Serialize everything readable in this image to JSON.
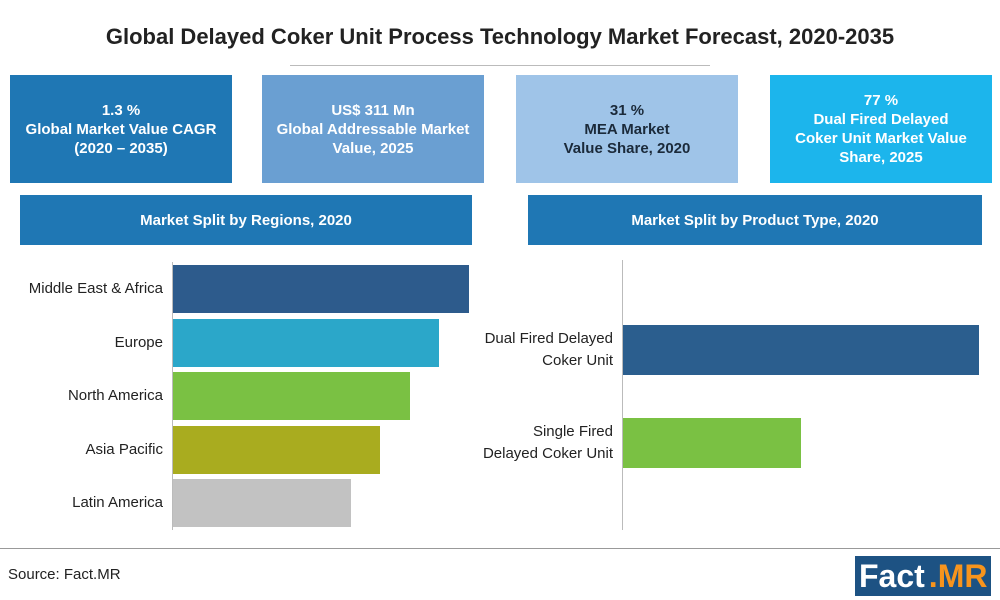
{
  "title": "Global Delayed Coker Unit Process Technology Market Forecast, 2020-2035",
  "kpis": [
    {
      "lines": [
        "1.3 %",
        "Global Market Value CAGR",
        "(2020 – 2035)"
      ],
      "color": "#1f77b4"
    },
    {
      "lines": [
        "US$ 311 Mn",
        "Global Addressable Market",
        "Value, 2025"
      ],
      "color": "#6a9fd2"
    },
    {
      "lines": [
        "31 %",
        "MEA Market",
        "Value Share, 2020"
      ],
      "color": "#9fc4e8"
    },
    {
      "lines": [
        "77 %",
        "Dual Fired Delayed",
        "Coker Unit Market Value",
        "Share, 2025"
      ],
      "color": "#1cb5ec"
    }
  ],
  "chart_data": [
    {
      "type": "bar",
      "title": "Market Split by Regions, 2020",
      "categories": [
        "Middle East & Africa",
        "Europe",
        "North America",
        "Asia Pacific",
        "Latin America"
      ],
      "values": [
        100,
        90,
        80,
        70,
        60
      ],
      "colors": [
        "#2d5b8c",
        "#2ba7c9",
        "#7ac143",
        "#a9ac1f",
        "#c2c2c2"
      ],
      "xlim": [
        0,
        100
      ]
    },
    {
      "type": "bar",
      "title": "Market Split by Product Type, 2020",
      "categories": [
        "Dual Fired Delayed Coker Unit",
        "Single Fired Delayed Coker Unit"
      ],
      "values": [
        100,
        50
      ],
      "colors": [
        "#2b5e8e",
        "#7ac143"
      ],
      "xlim": [
        0,
        100
      ]
    }
  ],
  "source": "Source: Fact.MR",
  "logo": [
    "Fact",
    ".MR"
  ]
}
